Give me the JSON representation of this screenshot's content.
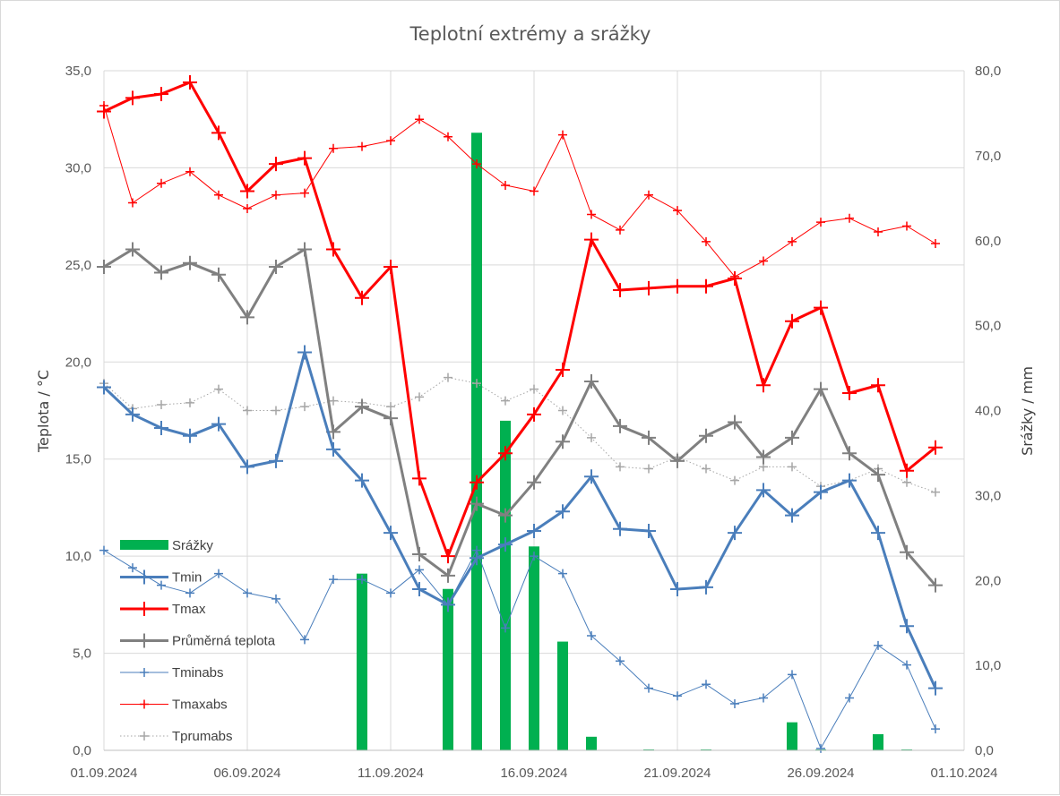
{
  "chart_data": {
    "type": "line",
    "title": "Teplotní extrémy a srážky",
    "ylabel": "Teplota / °C",
    "y2label": "Srážky / mm",
    "ylim": [
      0,
      35
    ],
    "y2lim": [
      0,
      80
    ],
    "yticks": [
      "0,0",
      "5,0",
      "10,0",
      "15,0",
      "20,0",
      "25,0",
      "30,0",
      "35,0"
    ],
    "y2ticks": [
      "0,0",
      "10,0",
      "20,0",
      "30,0",
      "40,0",
      "50,0",
      "60,0",
      "70,0",
      "80,0"
    ],
    "xticks": [
      "01.09.2024",
      "06.09.2024",
      "11.09.2024",
      "16.09.2024",
      "21.09.2024",
      "26.09.2024",
      "01.10.2024"
    ],
    "x": [
      "01.09.2024",
      "02.09.2024",
      "03.09.2024",
      "04.09.2024",
      "05.09.2024",
      "06.09.2024",
      "07.09.2024",
      "08.09.2024",
      "09.09.2024",
      "10.09.2024",
      "11.09.2024",
      "12.09.2024",
      "13.09.2024",
      "14.09.2024",
      "15.09.2024",
      "16.09.2024",
      "17.09.2024",
      "18.09.2024",
      "19.09.2024",
      "20.09.2024",
      "21.09.2024",
      "22.09.2024",
      "23.09.2024",
      "24.09.2024",
      "25.09.2024",
      "26.09.2024",
      "27.09.2024",
      "28.09.2024",
      "29.09.2024",
      "30.09.2024",
      "01.10.2024"
    ],
    "grid": true,
    "legend_position": "bottom-left",
    "series": [
      {
        "name": "Srážky",
        "type": "bar",
        "axis": "right",
        "color": "#00b050",
        "values": [
          0,
          0,
          0,
          0,
          0,
          0,
          0,
          0,
          0,
          20.8,
          0,
          0,
          19.0,
          72.7,
          38.8,
          24.0,
          12.8,
          1.6,
          0,
          0.1,
          0,
          0.1,
          0,
          0,
          3.3,
          0.1,
          0,
          1.9,
          0.1,
          0,
          0
        ]
      },
      {
        "name": "Tmin",
        "type": "line",
        "axis": "left",
        "color": "#4a7ebb",
        "width": 3,
        "values": [
          18.7,
          17.3,
          16.6,
          16.2,
          16.8,
          14.6,
          14.9,
          20.5,
          15.5,
          13.9,
          11.2,
          8.3,
          7.5,
          9.9,
          10.6,
          11.3,
          12.3,
          14.1,
          11.4,
          11.3,
          8.3,
          8.4,
          11.2,
          13.4,
          12.1,
          13.3,
          13.9,
          11.2,
          6.4,
          3.2,
          null
        ]
      },
      {
        "name": "Tmax",
        "type": "line",
        "axis": "left",
        "color": "#ff0000",
        "width": 3,
        "values": [
          32.9,
          33.6,
          33.8,
          34.4,
          31.8,
          28.8,
          30.2,
          30.5,
          25.8,
          23.3,
          24.9,
          14.0,
          10.0,
          13.8,
          15.3,
          17.3,
          19.6,
          26.3,
          23.7,
          23.8,
          23.9,
          23.9,
          24.3,
          18.8,
          22.1,
          22.8,
          18.4,
          18.8,
          14.4,
          15.6,
          null
        ]
      },
      {
        "name": "Průměrná teplota",
        "type": "line",
        "axis": "left",
        "color": "#808080",
        "width": 3,
        "values": [
          24.9,
          25.8,
          24.6,
          25.1,
          24.5,
          22.3,
          24.9,
          25.8,
          16.4,
          17.7,
          17.1,
          10.1,
          9.0,
          12.7,
          12.1,
          13.8,
          15.9,
          19.0,
          16.7,
          16.1,
          14.9,
          16.2,
          16.9,
          15.1,
          16.1,
          18.6,
          15.3,
          14.2,
          10.2,
          8.5,
          null
        ]
      },
      {
        "name": "Tminabs",
        "type": "line",
        "axis": "left",
        "color": "#4a7ebb",
        "width": 1,
        "values": [
          10.3,
          9.4,
          8.5,
          8.1,
          9.1,
          8.1,
          7.8,
          5.7,
          8.8,
          8.8,
          8.1,
          9.3,
          7.5,
          10.3,
          6.3,
          10.0,
          9.1,
          5.9,
          4.6,
          3.2,
          2.8,
          3.4,
          2.4,
          2.7,
          3.9,
          0.1,
          2.7,
          5.4,
          4.4,
          1.1,
          null
        ]
      },
      {
        "name": "Tmaxabs",
        "type": "line",
        "axis": "left",
        "color": "#ff0000",
        "width": 1,
        "values": [
          33.2,
          28.2,
          29.2,
          29.8,
          28.6,
          27.9,
          28.6,
          28.7,
          31.0,
          31.1,
          31.4,
          32.5,
          31.6,
          30.2,
          29.1,
          28.8,
          31.7,
          27.6,
          26.8,
          28.6,
          27.8,
          26.2,
          24.4,
          25.2,
          26.2,
          27.2,
          27.4,
          26.7,
          27.0,
          26.1,
          null
        ]
      },
      {
        "name": "Tprumabs",
        "type": "line",
        "axis": "left",
        "color": "#a6a6a6",
        "width": 1,
        "dotted": true,
        "values": [
          18.9,
          17.6,
          17.8,
          17.9,
          18.6,
          17.5,
          17.5,
          17.7,
          18.0,
          17.9,
          17.7,
          18.2,
          19.2,
          18.9,
          18.0,
          18.6,
          17.5,
          16.1,
          14.6,
          14.5,
          15.1,
          14.5,
          13.9,
          14.6,
          14.6,
          13.6,
          13.9,
          14.5,
          13.8,
          13.3,
          null
        ]
      }
    ]
  }
}
